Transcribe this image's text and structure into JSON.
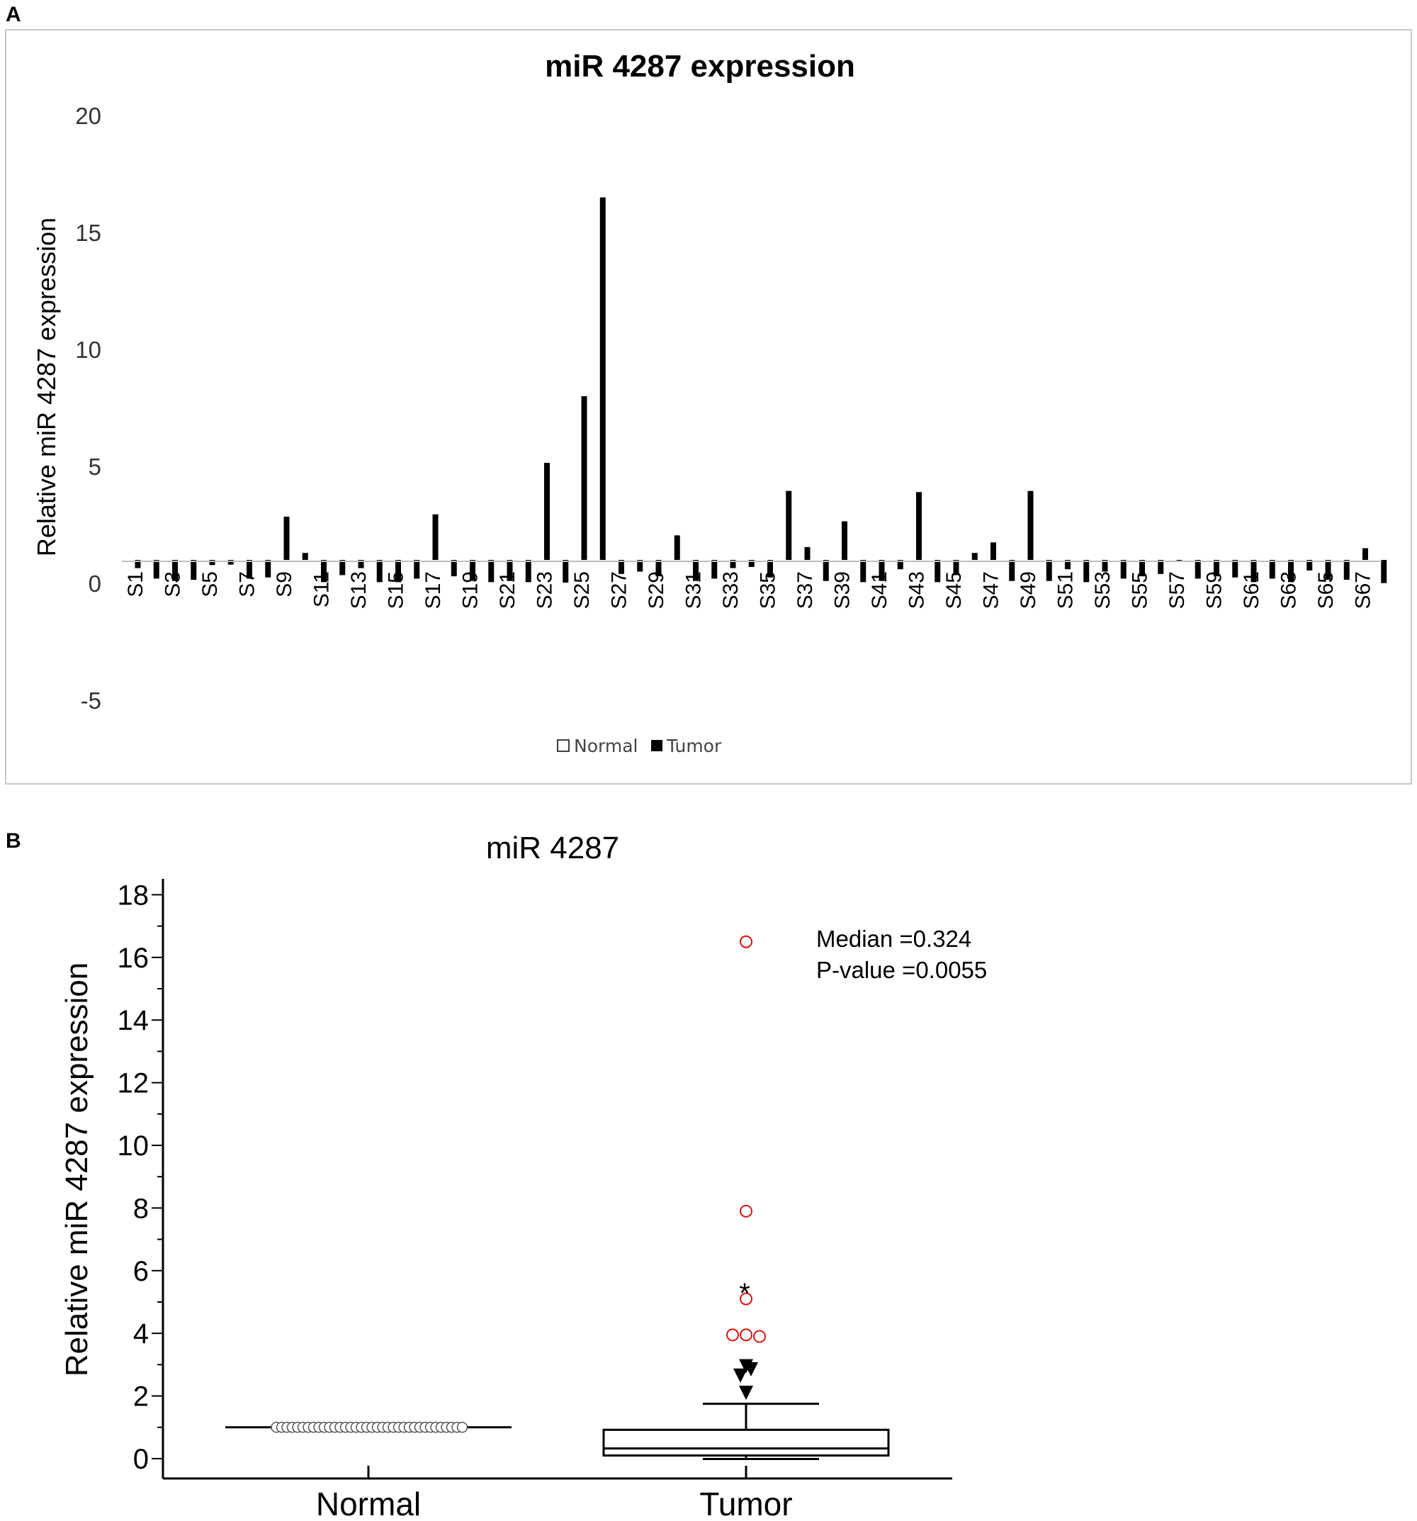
{
  "panels": {
    "a_label": "A",
    "b_label": "B"
  },
  "chart_data": [
    {
      "type": "bar",
      "title": "miR 4287 expression",
      "xlabel": "",
      "ylabel": "Relative miR 4287 expression",
      "ylim": [
        -5,
        20
      ],
      "yticks": [
        "-5",
        "0",
        "5",
        "10",
        "15",
        "20"
      ],
      "grid": false,
      "legend_position": "bottom-center",
      "categories": [
        "S1",
        "S2",
        "S3",
        "S4",
        "S5",
        "S6",
        "S7",
        "S8",
        "S9",
        "S10",
        "S11",
        "S12",
        "S13",
        "S14",
        "S15",
        "S16",
        "S17",
        "S18",
        "S19",
        "S20",
        "S21",
        "S22",
        "S23",
        "S24",
        "S25",
        "S26",
        "S27",
        "S28",
        "S29",
        "S30",
        "S31",
        "S32",
        "S33",
        "S34",
        "S35",
        "S36",
        "S37",
        "S38",
        "S39",
        "S40",
        "S41",
        "S42",
        "S43",
        "S44",
        "S45",
        "S46",
        "S47",
        "S48",
        "S49",
        "S50",
        "S51",
        "S52",
        "S53",
        "S54",
        "S55",
        "S56",
        "S57",
        "S58",
        "S59",
        "S60",
        "S61",
        "S62",
        "S63",
        "S64",
        "S65",
        "S66",
        "S67",
        "S68"
      ],
      "xtick_labels": [
        "S1",
        "S3",
        "S5",
        "S7",
        "S9",
        "S11",
        "S13",
        "S15",
        "S17",
        "S19",
        "S21",
        "S23",
        "S25",
        "S27",
        "S29",
        "S31",
        "S33",
        "S35",
        "S37",
        "S39",
        "S41",
        "S43",
        "S45",
        "S47",
        "S49",
        "S51",
        "S53",
        "S55",
        "S57",
        "S59",
        "S61",
        "S63",
        "S65",
        "S67"
      ],
      "baseline": 1,
      "series": [
        {
          "name": "Normal",
          "color": "#ffffff",
          "values": [
            1,
            1,
            1,
            1,
            1,
            1,
            1,
            1,
            1,
            1,
            1,
            1,
            1,
            1,
            1,
            1,
            1,
            1,
            1,
            1,
            1,
            1,
            1,
            1,
            1,
            1,
            1,
            1,
            1,
            1,
            1,
            1,
            1,
            1,
            1,
            1,
            1,
            1,
            1,
            1,
            1,
            1,
            1,
            1,
            1,
            1,
            1,
            1,
            1,
            1,
            1,
            1,
            1,
            1,
            1,
            1,
            1,
            1,
            1,
            1,
            1,
            1,
            1,
            1,
            1,
            1,
            1,
            1
          ]
        },
        {
          "name": "Tumor",
          "color": "#000000",
          "values": [
            0.65,
            0.2,
            0.1,
            0.15,
            0.78,
            0.8,
            0.2,
            0.25,
            2.85,
            1.3,
            0.05,
            0.35,
            0.65,
            0.05,
            0.05,
            0.2,
            2.95,
            0.3,
            0.1,
            0.05,
            0.1,
            0.05,
            5.15,
            0.03,
            8.0,
            16.5,
            0.4,
            0.5,
            0.3,
            2.05,
            0.1,
            0.2,
            0.65,
            0.7,
            0.25,
            3.95,
            1.55,
            0.1,
            2.65,
            0.05,
            0.1,
            0.6,
            3.9,
            0.05,
            0.35,
            1.3,
            1.75,
            0.1,
            3.95,
            0.1,
            0.6,
            0.05,
            0.5,
            0.2,
            0.3,
            0.4,
            0.95,
            0.2,
            0.3,
            0.25,
            0.05,
            0.2,
            0.05,
            0.55,
            0.15,
            0.15,
            1.5,
            0.01
          ]
        }
      ]
    },
    {
      "type": "box",
      "title": "miR 4287",
      "xlabel": "",
      "ylabel": "Relative miR 4287 expression",
      "ylim": [
        -1,
        18.5
      ],
      "yticks": [
        "0",
        "2",
        "4",
        "6",
        "8",
        "10",
        "12",
        "14",
        "16",
        "18"
      ],
      "categories": [
        "Normal",
        "Tumor"
      ],
      "annotations": [
        "Median =0.324",
        "P-value  =0.0055"
      ],
      "significance_marker": "*",
      "groups": [
        {
          "name": "Normal",
          "min": 1,
          "q1": 1,
          "median": 1,
          "q3": 1,
          "max": 1,
          "points": [
            1
          ]
        },
        {
          "name": "Tumor",
          "min": -0.01,
          "q1": 0.1,
          "median": 0.324,
          "q3": 0.92,
          "max": 1.75,
          "extreme_outliers": [
            3.95,
            3.95,
            3.9,
            5.1,
            7.9,
            16.5
          ],
          "far_outliers": [
            2.1,
            2.65,
            2.85,
            2.95
          ]
        }
      ]
    }
  ]
}
